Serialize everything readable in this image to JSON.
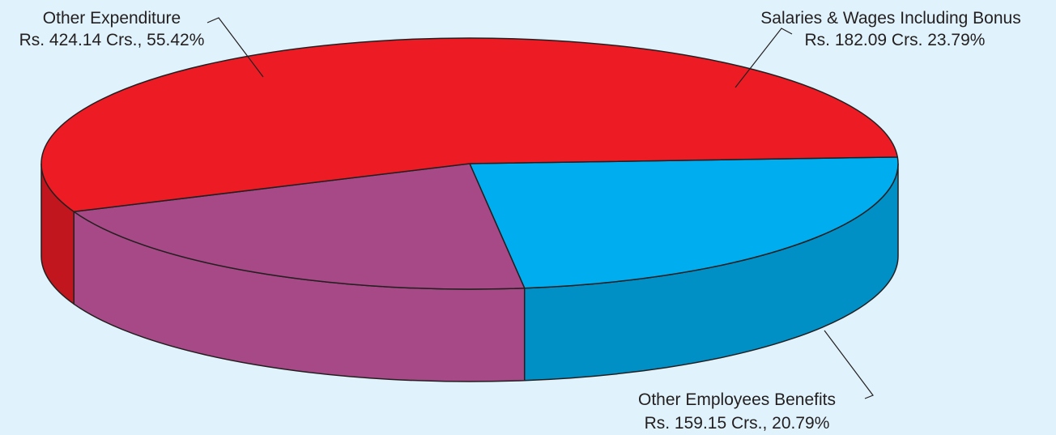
{
  "chart_data": {
    "type": "pie",
    "title": "",
    "style": "3d",
    "slices": [
      {
        "name": "Other Expenditure",
        "value": 424.14,
        "percent": 55.42,
        "value_label": "Rs. 424.14 Crs., 55.42%",
        "color": "#ed1c24",
        "side_color": "#c1161d"
      },
      {
        "name": "Salaries & Wages Including Bonus",
        "value": 182.09,
        "percent": 23.79,
        "value_label": "Rs. 182.09 Crs. 23.79%",
        "color": "#00aeef",
        "side_color": "#0090c6"
      },
      {
        "name": "Other Employees Benefits",
        "value": 159.15,
        "percent": 20.79,
        "value_label": "Rs. 159.15 Crs., 20.79%",
        "color": "#a64986",
        "side_color": "#a64986"
      }
    ],
    "background": "#e0f2fb",
    "outline_color": "#231f20"
  }
}
